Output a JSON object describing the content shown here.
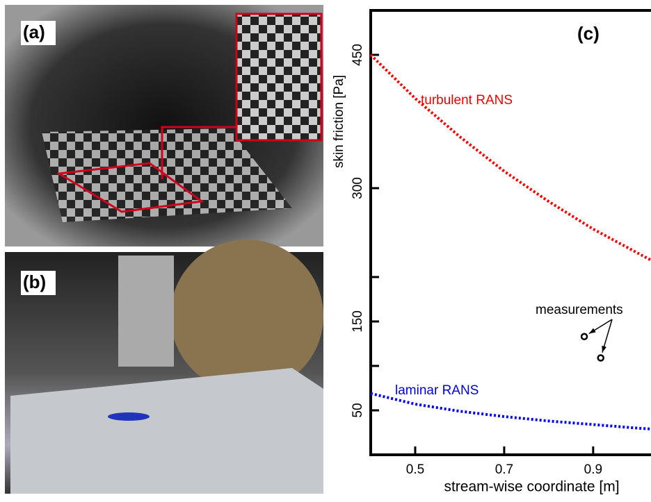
{
  "panels": {
    "a": {
      "label": "(a)"
    },
    "b": {
      "label": "(b)"
    }
  },
  "chart_data": {
    "type": "line",
    "panel_label": "(c)",
    "x_label": "stream-wise coordinate [m]",
    "y_label": "skin friction [Pa]",
    "xlim": [
      0.4,
      1.03
    ],
    "ylim": [
      0,
      500
    ],
    "xticks": [
      0.5,
      0.7,
      0.9
    ],
    "yticks": [
      50,
      150,
      300,
      450
    ],
    "minor_yticks": [
      100,
      200
    ],
    "grid": false,
    "series": [
      {
        "name": "turbulent RANS",
        "color": "#ff0000",
        "style": "dotted",
        "x": [
          0.4,
          0.5,
          0.6,
          0.7,
          0.8,
          0.9,
          1.0,
          1.03
        ],
        "values": [
          450,
          401,
          358,
          319,
          285,
          254,
          227,
          219
        ]
      },
      {
        "name": "laminar RANS",
        "color": "#0000ff",
        "style": "dotted",
        "x": [
          0.4,
          0.5,
          0.6,
          0.7,
          0.8,
          0.9,
          1.0,
          1.03
        ],
        "values": [
          69,
          57,
          49,
          43,
          38,
          34,
          30,
          29
        ]
      },
      {
        "name": "measurements",
        "color": "#000000",
        "style": "markers",
        "x": [
          0.88,
          0.917
        ],
        "values": [
          133,
          109
        ]
      }
    ]
  }
}
